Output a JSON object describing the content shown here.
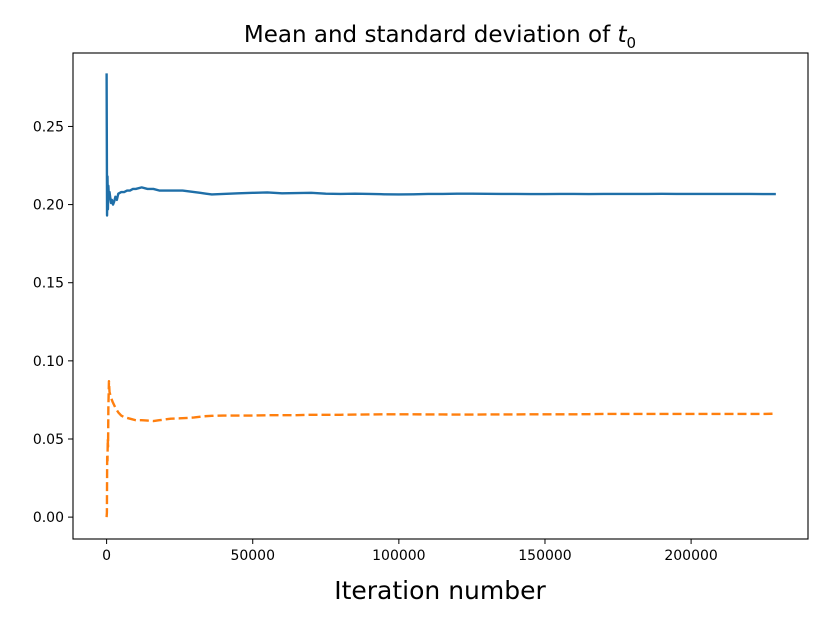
{
  "chart_data": {
    "type": "line",
    "title": "Mean and standard deviation of ",
    "title_var": "t",
    "title_sub": "0",
    "xlabel": "Iteration number",
    "ylabel": "",
    "xlim": [
      -11500,
      240000
    ],
    "ylim": [
      -0.014,
      0.297
    ],
    "xticks": [
      0,
      50000,
      100000,
      150000,
      200000
    ],
    "xtick_labels": [
      "0",
      "50000",
      "100000",
      "150000",
      "200000"
    ],
    "yticks": [
      0.0,
      0.05,
      0.1,
      0.15,
      0.2,
      0.25
    ],
    "ytick_labels": [
      "0.00",
      "0.05",
      "0.10",
      "0.15",
      "0.20",
      "0.25"
    ],
    "grid": false,
    "series": [
      {
        "name": "mean",
        "color": "#1f6fa8",
        "style": "solid",
        "x": [
          0,
          150,
          300,
          450,
          600,
          800,
          1000,
          1200,
          1500,
          1800,
          2200,
          2600,
          3000,
          3500,
          4000,
          5000,
          6000,
          7000,
          8000,
          9000,
          10000,
          12000,
          14000,
          16000,
          18000,
          20000,
          22000,
          24000,
          26000,
          28000,
          30000,
          32000,
          34000,
          36000,
          40000,
          45000,
          50000,
          55000,
          60000,
          65000,
          70000,
          75000,
          80000,
          85000,
          90000,
          95000,
          100000,
          105000,
          110000,
          115000,
          120000,
          125000,
          130000,
          135000,
          140000,
          145000,
          150000,
          155000,
          160000,
          165000,
          170000,
          175000,
          180000,
          185000,
          190000,
          195000,
          200000,
          205000,
          210000,
          215000,
          220000,
          225000,
          229000
        ],
        "y": [
          0.284,
          0.193,
          0.218,
          0.197,
          0.212,
          0.204,
          0.208,
          0.205,
          0.201,
          0.203,
          0.2,
          0.202,
          0.205,
          0.203,
          0.207,
          0.208,
          0.208,
          0.209,
          0.209,
          0.21,
          0.21,
          0.211,
          0.21,
          0.21,
          0.209,
          0.209,
          0.209,
          0.209,
          0.209,
          0.2085,
          0.208,
          0.2075,
          0.207,
          0.2065,
          0.2068,
          0.2072,
          0.2075,
          0.2078,
          0.2072,
          0.2074,
          0.2075,
          0.207,
          0.2068,
          0.207,
          0.2068,
          0.2066,
          0.2065,
          0.2066,
          0.2068,
          0.2068,
          0.207,
          0.207,
          0.2069,
          0.2068,
          0.2068,
          0.2067,
          0.2067,
          0.2068,
          0.2068,
          0.2067,
          0.2068,
          0.2068,
          0.2068,
          0.2068,
          0.2069,
          0.2068,
          0.2068,
          0.2068,
          0.2068,
          0.2068,
          0.2068,
          0.2067,
          0.2067
        ]
      },
      {
        "name": "standard deviation",
        "color": "#ff7f0e",
        "style": "dashed",
        "x": [
          0,
          100,
          200,
          300,
          400,
          500,
          600,
          800,
          1000,
          1300,
          1600,
          2000,
          2500,
          3000,
          4000,
          5000,
          6000,
          8000,
          10000,
          12000,
          14000,
          16000,
          18000,
          20000,
          22000,
          25000,
          28000,
          30000,
          33000,
          36000,
          40000,
          45000,
          50000,
          55000,
          60000,
          65000,
          70000,
          75000,
          80000,
          85000,
          90000,
          95000,
          100000,
          105000,
          110000,
          115000,
          120000,
          125000,
          130000,
          135000,
          140000,
          145000,
          150000,
          155000,
          160000,
          165000,
          170000,
          175000,
          180000,
          185000,
          190000,
          195000,
          200000,
          205000,
          210000,
          215000,
          220000,
          225000,
          229000
        ],
        "y": [
          0.0,
          0.003,
          0.04,
          0.036,
          0.05,
          0.045,
          0.07,
          0.087,
          0.08,
          0.078,
          0.076,
          0.074,
          0.072,
          0.07,
          0.067,
          0.065,
          0.064,
          0.063,
          0.062,
          0.062,
          0.0618,
          0.0615,
          0.062,
          0.0625,
          0.063,
          0.0632,
          0.0635,
          0.0638,
          0.0645,
          0.0648,
          0.065,
          0.065,
          0.065,
          0.0652,
          0.0652,
          0.0652,
          0.0655,
          0.0655,
          0.0655,
          0.0656,
          0.0657,
          0.0658,
          0.0658,
          0.0658,
          0.0657,
          0.0657,
          0.0656,
          0.0656,
          0.0657,
          0.0657,
          0.0657,
          0.0658,
          0.0658,
          0.0658,
          0.0658,
          0.0659,
          0.066,
          0.066,
          0.066,
          0.066,
          0.066,
          0.066,
          0.066,
          0.066,
          0.066,
          0.066,
          0.066,
          0.066,
          0.0662
        ]
      }
    ]
  }
}
